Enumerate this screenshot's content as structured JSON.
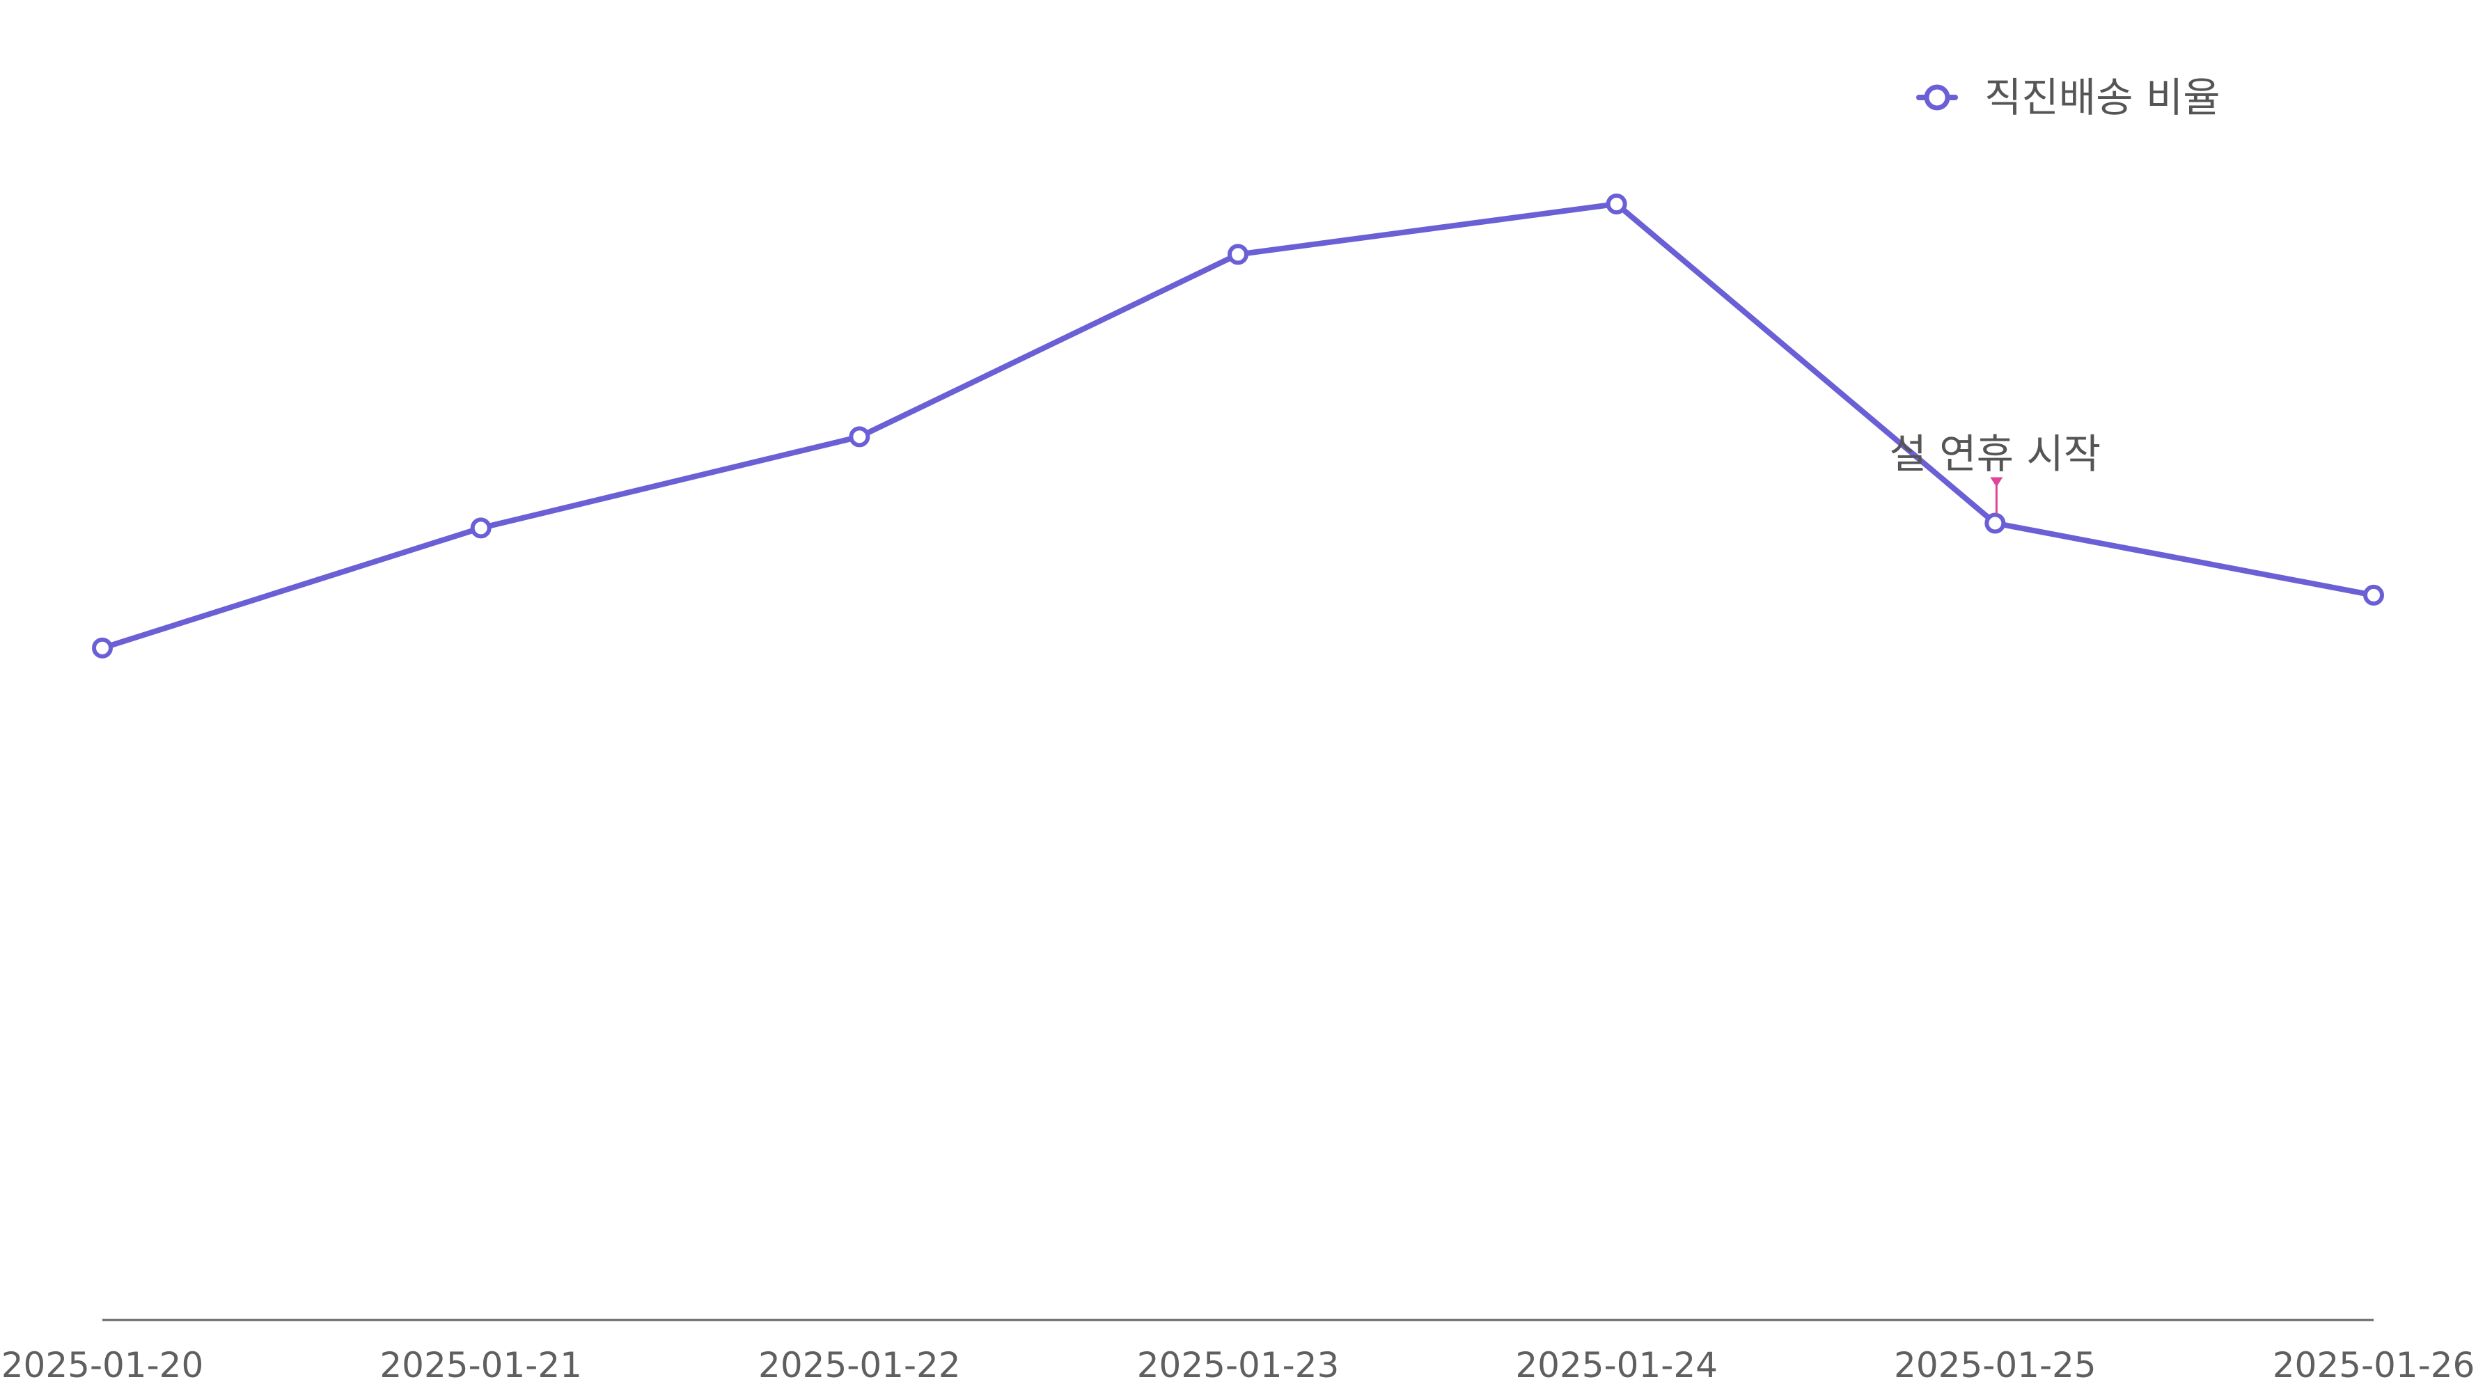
{
  "chart_data": {
    "type": "line",
    "title": "",
    "xlabel": "",
    "ylabel": "",
    "x": [
      "2025-01-20",
      "2025-01-21",
      "2025-01-22",
      "2025-01-23",
      "2025-01-24",
      "2025-01-25",
      "2025-01-26"
    ],
    "series": [
      {
        "name": "직진배송 비율",
        "values": [
          68,
          73,
          76.8,
          84.4,
          86.5,
          73.2,
          70.2
        ],
        "color": "#6b5fd6"
      }
    ],
    "ylim": [
      40,
      95
    ],
    "y_axis_visible": false,
    "grid": false,
    "legend": {
      "position": "top-right",
      "marker": "hollow-circle"
    },
    "annotations": [
      {
        "text": "설 연휴 시작",
        "x": "2025-01-25",
        "arrow_color": "#e0449a"
      }
    ],
    "axis_color": "#666666"
  }
}
